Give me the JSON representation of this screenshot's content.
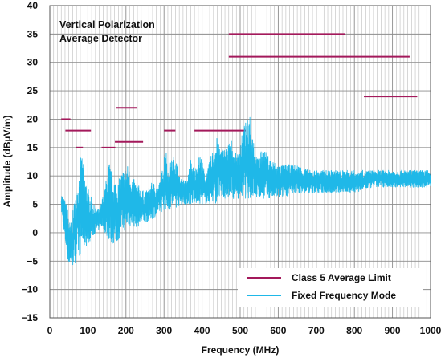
{
  "chart_data": {
    "type": "line",
    "title": "",
    "annotation": [
      "Vertical Polarization",
      "Average Detector"
    ],
    "xlabel": "Frequency (MHz)",
    "ylabel": "Amplitude (dBµV/m)",
    "xlim": [
      0,
      1000
    ],
    "ylim": [
      -15,
      40
    ],
    "x_ticks": [
      "0",
      "100",
      "200",
      "300",
      "400",
      "500",
      "600",
      "700",
      "800",
      "900",
      "1000"
    ],
    "y_ticks": [
      "−15",
      "−10",
      "−5",
      "0",
      "5",
      "10",
      "15",
      "20",
      "25",
      "30",
      "35",
      "40"
    ],
    "grid": true,
    "legend_position": "bottom-right",
    "series": [
      {
        "name": "Class 5 Average Limit",
        "color": "#A3195B",
        "kind": "segments",
        "segments": [
          {
            "x": [
              30,
              54
            ],
            "y": 20
          },
          {
            "x": [
              41,
              108
            ],
            "y": 18
          },
          {
            "x": [
              68,
              87
            ],
            "y": 15
          },
          {
            "x": [
              136,
              172
            ],
            "y": 15
          },
          {
            "x": [
              174,
              230
            ],
            "y": 22
          },
          {
            "x": [
              171,
              245
            ],
            "y": 16
          },
          {
            "x": [
              300,
              330
            ],
            "y": 18
          },
          {
            "x": [
              380,
              515
            ],
            "y": 18
          },
          {
            "x": [
              470,
              775
            ],
            "y": 35
          },
          {
            "x": [
              470,
              945
            ],
            "y": 31
          },
          {
            "x": [
              825,
              965
            ],
            "y": 24
          }
        ]
      },
      {
        "name": "Fixed Frequency Mode",
        "color": "#1FB8E8",
        "kind": "envelope",
        "x_range": [
          30,
          1000
        ],
        "envelope_top": [
          [
            30,
            7
          ],
          [
            45,
            5
          ],
          [
            55,
            1
          ],
          [
            65,
            6
          ],
          [
            75,
            10
          ],
          [
            80,
            13
          ],
          [
            85,
            14
          ],
          [
            90,
            11
          ],
          [
            100,
            8
          ],
          [
            115,
            5
          ],
          [
            130,
            4
          ],
          [
            145,
            8
          ],
          [
            155,
            13
          ],
          [
            165,
            10
          ],
          [
            180,
            9
          ],
          [
            190,
            11
          ],
          [
            205,
            12
          ],
          [
            215,
            10
          ],
          [
            225,
            9
          ],
          [
            250,
            7
          ],
          [
            270,
            9
          ],
          [
            285,
            8
          ],
          [
            295,
            11
          ],
          [
            300,
            13
          ],
          [
            303,
            17
          ],
          [
            310,
            11
          ],
          [
            320,
            13
          ],
          [
            330,
            14
          ],
          [
            340,
            10
          ],
          [
            360,
            9
          ],
          [
            370,
            13
          ],
          [
            380,
            11
          ],
          [
            395,
            14
          ],
          [
            410,
            10
          ],
          [
            425,
            14
          ],
          [
            440,
            17
          ],
          [
            450,
            15
          ],
          [
            465,
            15
          ],
          [
            475,
            17
          ],
          [
            485,
            14
          ],
          [
            495,
            14
          ],
          [
            510,
            19
          ],
          [
            520,
            20
          ],
          [
            527,
            22
          ],
          [
            533,
            18
          ],
          [
            545,
            13
          ],
          [
            560,
            15
          ],
          [
            580,
            13
          ],
          [
            600,
            12
          ],
          [
            620,
            12
          ],
          [
            650,
            12
          ],
          [
            680,
            11
          ],
          [
            700,
            11
          ],
          [
            720,
            11
          ],
          [
            750,
            11
          ],
          [
            780,
            11
          ],
          [
            800,
            11
          ],
          [
            830,
            11
          ],
          [
            850,
            11
          ],
          [
            870,
            11
          ],
          [
            900,
            11
          ],
          [
            930,
            11
          ],
          [
            960,
            11
          ],
          [
            980,
            11
          ],
          [
            1000,
            11
          ]
        ],
        "envelope_bottom": [
          [
            30,
            4
          ],
          [
            40,
            -2
          ],
          [
            50,
            -6
          ],
          [
            60,
            -6
          ],
          [
            70,
            -5
          ],
          [
            80,
            -4
          ],
          [
            90,
            -3
          ],
          [
            100,
            -2
          ],
          [
            120,
            0
          ],
          [
            140,
            1
          ],
          [
            150,
            -1
          ],
          [
            160,
            -2
          ],
          [
            175,
            -2
          ],
          [
            190,
            0
          ],
          [
            210,
            1
          ],
          [
            230,
            1
          ],
          [
            260,
            2
          ],
          [
            280,
            3
          ],
          [
            300,
            4
          ],
          [
            320,
            4
          ],
          [
            350,
            5
          ],
          [
            380,
            5
          ],
          [
            400,
            5
          ],
          [
            430,
            5
          ],
          [
            460,
            6
          ],
          [
            500,
            6
          ],
          [
            540,
            6
          ],
          [
            560,
            6
          ],
          [
            580,
            6
          ],
          [
            600,
            6
          ],
          [
            650,
            7
          ],
          [
            700,
            7
          ],
          [
            750,
            7
          ],
          [
            800,
            7
          ],
          [
            850,
            8
          ],
          [
            900,
            8
          ],
          [
            950,
            8
          ],
          [
            1000,
            8
          ]
        ]
      }
    ]
  }
}
